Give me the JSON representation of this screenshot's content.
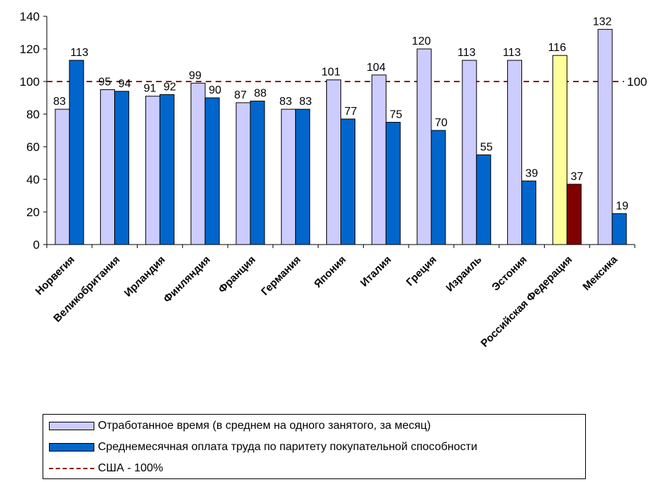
{
  "chart_data": {
    "type": "bar",
    "categories": [
      "Норвегия",
      "Великобритания",
      "Ирландия",
      "Финляндия",
      "Франция",
      "Германия",
      "Япония",
      "Италия",
      "Греция",
      "Израиль",
      "Эстония",
      "Российская Федерация",
      "Мексика"
    ],
    "series": [
      {
        "name": "Отработанное время (в среднем на одного занятого, за месяц)",
        "values": [
          83,
          95,
          91,
          99,
          87,
          83,
          101,
          104,
          120,
          113,
          113,
          116,
          132
        ],
        "color": "#CCCCFF"
      },
      {
        "name": "Среднемесячная оплата труда по паритету покупательной способности",
        "values": [
          113,
          94,
          92,
          90,
          88,
          83,
          77,
          75,
          70,
          55,
          39,
          37,
          19
        ],
        "color": "#0066CC"
      }
    ],
    "highlight": {
      "category": "Российская Федерация",
      "colors": [
        "#FFFF99",
        "#800000"
      ]
    },
    "reference_line": {
      "value": 100,
      "label": "100",
      "name": "США - 100%",
      "color": "#8B1A1A"
    },
    "ylim": [
      0,
      140
    ],
    "yticks": [
      0,
      20,
      40,
      60,
      80,
      100,
      120,
      140
    ],
    "xlabel": "",
    "ylabel": "",
    "title": "",
    "grid": false,
    "legend_position": "bottom"
  }
}
